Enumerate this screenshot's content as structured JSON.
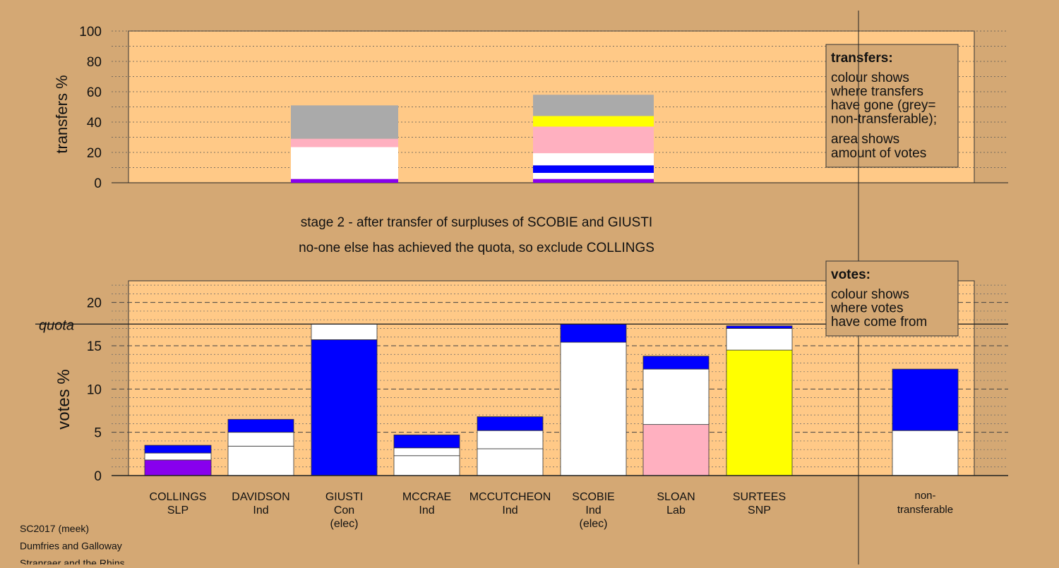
{
  "stage_lines": [
    "stage 2 - after transfer of surpluses of SCOBIE and GIUSTI",
    "no-one else has achieved the quota, so exclude COLLINGS"
  ],
  "footer_lines": [
    "SC2017 (meek)",
    "Dumfries and Galloway",
    "Stranraer and the Rhins"
  ],
  "colors": {
    "background": "#d4a874",
    "plot_background": "#ffc987",
    "SLP": "#8800ee",
    "Ind": "#ffffff",
    "Con": "#0000ff",
    "Lab": "#ffb0c0",
    "SNP": "#ffff00",
    "nontransferable": "#aaaaaa"
  },
  "chart_data": [
    {
      "type": "bar",
      "stacked": true,
      "name": "transfers",
      "ylabel": "transfers %",
      "ylim": [
        0,
        100
      ],
      "yticks": [
        0,
        20,
        40,
        60,
        80,
        100
      ],
      "grid": "dotted",
      "legend": {
        "position": "top-right",
        "title": "transfers:",
        "lines_a": [
          "colour shows",
          "where transfers",
          "have gone (grey=",
          "non-transferable);"
        ],
        "lines_b": [
          "area shows",
          "amount of votes"
        ]
      },
      "bars": [
        {
          "source": "GIUSTI",
          "segments": [
            {
              "color": "#8800ee",
              "from": 0,
              "to": 2.5
            },
            {
              "color": "#ffffff",
              "from": 2.5,
              "to": 23.5
            },
            {
              "color": "#ffb0c0",
              "from": 23.5,
              "to": 29
            },
            {
              "color": "#aaaaaa",
              "from": 29,
              "to": 51
            }
          ]
        },
        {
          "source": "SCOBIE",
          "segments": [
            {
              "color": "#8800ee",
              "from": 0,
              "to": 2.5
            },
            {
              "color": "#ffffff",
              "from": 2.5,
              "to": 6.5
            },
            {
              "color": "#0000ff",
              "from": 6.5,
              "to": 11.5
            },
            {
              "color": "#ffffff",
              "from": 11.5,
              "to": 19.5
            },
            {
              "color": "#ffb0c0",
              "from": 19.5,
              "to": 37
            },
            {
              "color": "#ffff00",
              "from": 37,
              "to": 44
            },
            {
              "color": "#aaaaaa",
              "from": 44,
              "to": 58
            }
          ]
        }
      ]
    },
    {
      "type": "bar",
      "stacked": true,
      "name": "votes",
      "ylabel": "votes %",
      "ylim": [
        0,
        22.5
      ],
      "yticks": [
        0,
        5,
        10,
        15,
        20
      ],
      "quota": 17.5,
      "quota_label": "quota",
      "grid": "dashed",
      "legend": {
        "position": "top-right",
        "title": "votes:",
        "lines": [
          "colour shows",
          "where votes",
          "have come from"
        ]
      },
      "categories": [
        {
          "name": "COLLINGS",
          "party": "SLP",
          "note": ""
        },
        {
          "name": "DAVIDSON",
          "party": "Ind",
          "note": ""
        },
        {
          "name": "GIUSTI",
          "party": "Con",
          "note": "(elec)"
        },
        {
          "name": "MCCRAE",
          "party": "Ind",
          "note": ""
        },
        {
          "name": "MCCUTCHEON",
          "party": "Ind",
          "note": ""
        },
        {
          "name": "SCOBIE",
          "party": "Ind",
          "note": "(elec)"
        },
        {
          "name": "SLOAN",
          "party": "Lab",
          "note": ""
        },
        {
          "name": "SURTEES",
          "party": "SNP",
          "note": ""
        }
      ],
      "nontransferable_label": [
        "non-",
        "transferable"
      ],
      "bars": [
        {
          "segments": [
            {
              "color": "#8800ee",
              "from": 0,
              "to": 1.8
            },
            {
              "color": "#ffffff",
              "from": 1.8,
              "to": 2.6
            },
            {
              "color": "#0000ff",
              "from": 2.6,
              "to": 3.5
            }
          ]
        },
        {
          "segments": [
            {
              "color": "#ffffff",
              "from": 0,
              "to": 3.4
            },
            {
              "color": "#ffffff",
              "from": 3.4,
              "to": 5.0
            },
            {
              "color": "#0000ff",
              "from": 5.0,
              "to": 6.5
            }
          ]
        },
        {
          "segments": [
            {
              "color": "#0000ff",
              "from": 0,
              "to": 15.7
            },
            {
              "color": "#ffffff",
              "from": 15.7,
              "to": 17.5
            }
          ]
        },
        {
          "segments": [
            {
              "color": "#ffffff",
              "from": 0,
              "to": 2.3
            },
            {
              "color": "#ffffff",
              "from": 2.3,
              "to": 3.2
            },
            {
              "color": "#0000ff",
              "from": 3.2,
              "to": 4.7
            }
          ]
        },
        {
          "segments": [
            {
              "color": "#ffffff",
              "from": 0,
              "to": 3.1
            },
            {
              "color": "#ffffff",
              "from": 3.1,
              "to": 5.2
            },
            {
              "color": "#0000ff",
              "from": 5.2,
              "to": 6.8
            }
          ]
        },
        {
          "segments": [
            {
              "color": "#ffffff",
              "from": 0,
              "to": 15.4
            },
            {
              "color": "#0000ff",
              "from": 15.4,
              "to": 17.5
            }
          ]
        },
        {
          "segments": [
            {
              "color": "#ffb0c0",
              "from": 0,
              "to": 5.9
            },
            {
              "color": "#ffffff",
              "from": 5.9,
              "to": 12.3
            },
            {
              "color": "#0000ff",
              "from": 12.3,
              "to": 13.8
            }
          ]
        },
        {
          "segments": [
            {
              "color": "#ffff00",
              "from": 0,
              "to": 14.5
            },
            {
              "color": "#ffffff",
              "from": 14.5,
              "to": 17.0
            },
            {
              "color": "#0000ff",
              "from": 17.0,
              "to": 17.3
            }
          ]
        },
        {
          "nontransferable": true,
          "segments": [
            {
              "color": "#ffffff",
              "from": 0,
              "to": 5.2
            },
            {
              "color": "#0000ff",
              "from": 5.2,
              "to": 12.3
            }
          ]
        }
      ]
    }
  ]
}
